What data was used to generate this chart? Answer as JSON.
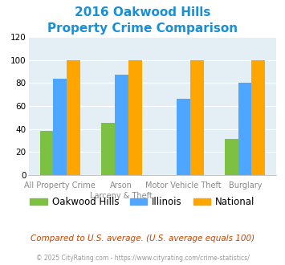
{
  "title_line1": "2016 Oakwood Hills",
  "title_line2": "Property Crime Comparison",
  "category_labels_top": [
    "",
    "Arson",
    "Motor Vehicle Theft",
    ""
  ],
  "category_labels_bot": [
    "All Property Crime",
    "Larceny & Theft",
    "",
    "Burglary"
  ],
  "series": {
    "Oakwood Hills": [
      38,
      45,
      0,
      31
    ],
    "Illinois": [
      84,
      87,
      66,
      80
    ],
    "National": [
      100,
      100,
      100,
      100
    ]
  },
  "colors": {
    "Oakwood Hills": "#7DC142",
    "Illinois": "#4DA6FF",
    "National": "#FFA500"
  },
  "ylim": [
    0,
    120
  ],
  "yticks": [
    0,
    20,
    40,
    60,
    80,
    100,
    120
  ],
  "title_color": "#1B8FD4",
  "plot_bg": "#E3EFF5",
  "footer_text": "Compared to U.S. average. (U.S. average equals 100)",
  "credit_text": "© 2025 CityRating.com - https://www.cityrating.com/crime-statistics/",
  "footer_color": "#CC4400",
  "credit_color": "#999999",
  "bar_width": 0.22
}
